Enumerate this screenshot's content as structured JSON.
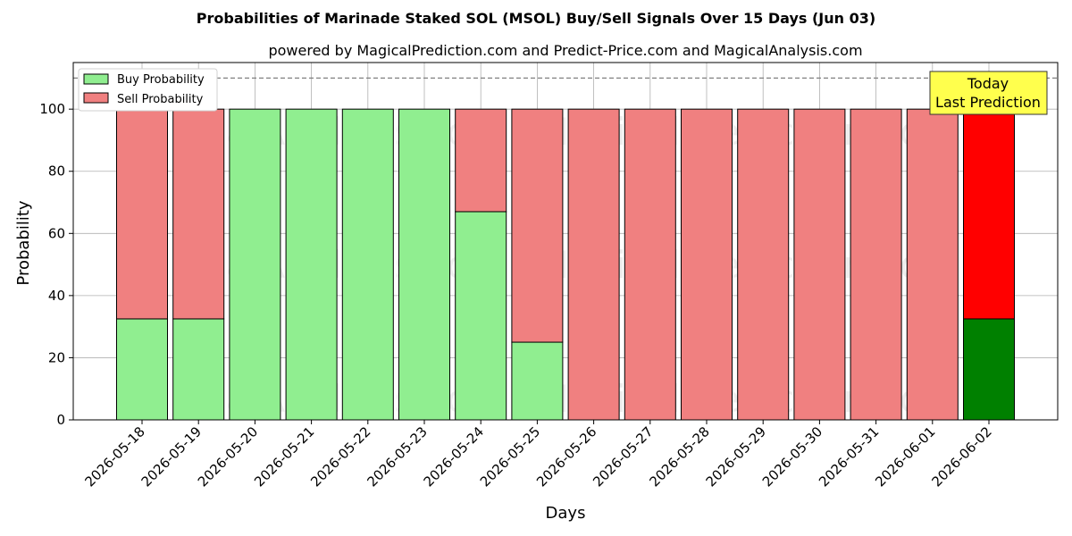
{
  "chart_data": {
    "type": "bar",
    "stacked": true,
    "title": "Probabilities of Marinade Staked SOL (MSOL) Buy/Sell Signals Over 15 Days (Jun 03)",
    "subtitle": "powered by MagicalPrediction.com and Predict-Price.com and MagicalAnalysis.com",
    "xlabel": "Days",
    "ylabel": "Probability",
    "ylim": [
      0,
      115
    ],
    "yticks": [
      0,
      20,
      40,
      60,
      80,
      100
    ],
    "threshold_line": 110,
    "grid": true,
    "legend_position": "top-left",
    "categories": [
      "2026-05-18",
      "2026-05-19",
      "2026-05-20",
      "2026-05-21",
      "2026-05-22",
      "2026-05-23",
      "2026-05-24",
      "2026-05-25",
      "2026-05-26",
      "2026-05-27",
      "2026-05-28",
      "2026-05-29",
      "2026-05-30",
      "2026-05-31",
      "2026-06-01",
      "2026-06-02"
    ],
    "series": [
      {
        "name": "Buy Probability",
        "color": "#90ee90",
        "highlight_color": "#008000",
        "values": [
          32.5,
          32.5,
          100,
          100,
          100,
          100,
          67,
          25,
          0,
          0,
          0,
          0,
          0,
          0,
          0,
          32.5
        ]
      },
      {
        "name": "Sell Probability",
        "color": "#f08080",
        "highlight_color": "#ff0000",
        "values": [
          67.5,
          67.5,
          0,
          0,
          0,
          0,
          33,
          75,
          100,
          100,
          100,
          100,
          100,
          100,
          100,
          67.5
        ]
      }
    ],
    "highlight_index": 15,
    "annotation": {
      "lines": [
        "Today",
        "Last Prediction"
      ],
      "color": "#ffff4d"
    },
    "watermarks": [
      "MagicalAnalysis.com",
      "MagicalPrediction.com"
    ]
  }
}
